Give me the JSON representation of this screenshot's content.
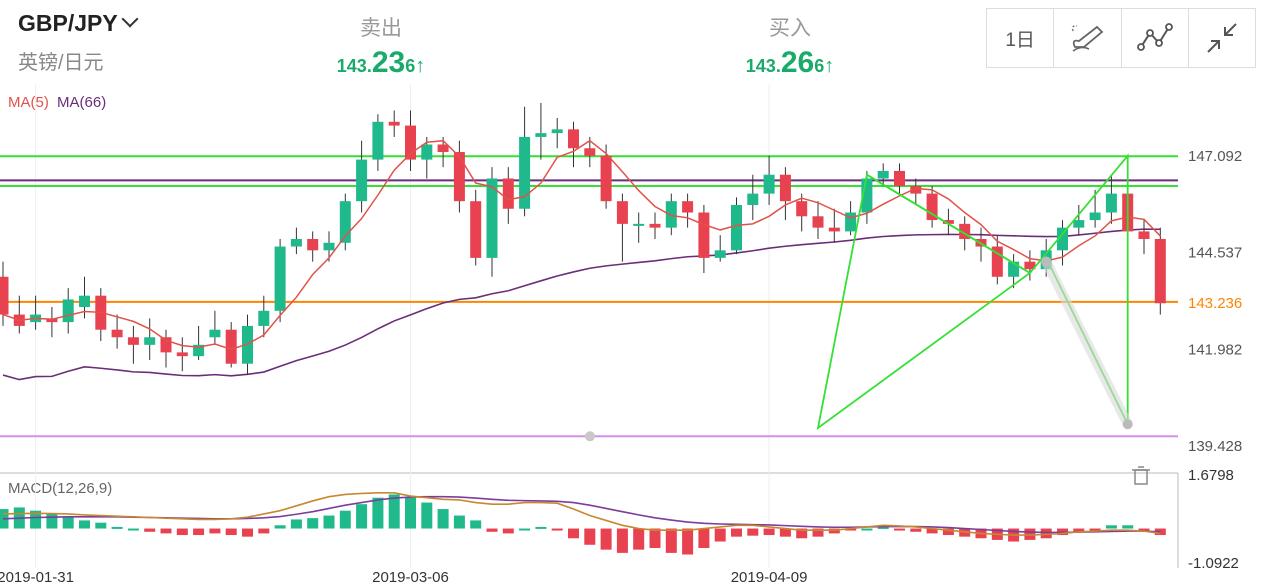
{
  "header": {
    "pair": "GBP/JPY",
    "pair_sub": "英镑/日元",
    "sell": {
      "label": "卖出",
      "small": "143.",
      "big": "23",
      "last": "6",
      "arrow": "↑"
    },
    "buy": {
      "label": "买入",
      "small": "143.",
      "big": "26",
      "last": "6",
      "arrow": "↑"
    },
    "timeframe_label": "1日",
    "tools": [
      "draw-pen-icon",
      "line-tool-icon",
      "collapse-icon"
    ]
  },
  "colors": {
    "up": "#1fb98c",
    "down": "#e8414f",
    "ma5": "#e0534a",
    "ma66": "#6b2d7a",
    "green_line": "#33e033",
    "orange_line": "#ff8400",
    "purple_line": "#d58df0",
    "dif": "#c88830",
    "dea": "#7b3d9e"
  },
  "chart_data": [
    {
      "type": "candlestick",
      "indicators": [
        {
          "name": "MA(5)",
          "color": "#e0534a"
        },
        {
          "name": "MA(66)",
          "color": "#6b2d7a"
        }
      ],
      "y_ticks": [
        "147.092",
        "144.537",
        "141.982",
        "139.428"
      ],
      "y_range": [
        139.0,
        149.0
      ],
      "current_price_label": "143.236",
      "current_price": 143.236,
      "horizontal_lines": [
        {
          "value": 147.09,
          "color": "#33e033"
        },
        {
          "value": 146.45,
          "color": "#6b2d7a"
        },
        {
          "value": 146.3,
          "color": "#33e033"
        },
        {
          "value": 143.236,
          "color": "#ff8400"
        },
        {
          "value": 139.68,
          "color": "#d58df0"
        }
      ],
      "x_tick_labels": [
        {
          "label": "2019-01-31",
          "index": 2
        },
        {
          "label": "2019-03-06",
          "index": 25
        },
        {
          "label": "2019-04-09",
          "index": 47
        }
      ],
      "candles": [
        [
          143.9,
          142.9,
          144.3,
          142.6
        ],
        [
          142.9,
          142.6,
          143.4,
          142.4
        ],
        [
          142.7,
          142.9,
          143.4,
          142.5
        ],
        [
          142.8,
          142.7,
          143.1,
          142.3
        ],
        [
          142.7,
          143.3,
          143.6,
          142.4
        ],
        [
          143.1,
          143.4,
          143.9,
          142.8
        ],
        [
          143.4,
          142.5,
          143.6,
          142.2
        ],
        [
          142.5,
          142.3,
          142.9,
          142.0
        ],
        [
          142.3,
          142.1,
          142.6,
          141.6
        ],
        [
          142.1,
          142.3,
          142.8,
          141.7
        ],
        [
          142.3,
          141.9,
          142.5,
          141.5
        ],
        [
          141.9,
          141.8,
          142.3,
          141.4
        ],
        [
          141.8,
          142.1,
          142.6,
          141.7
        ],
        [
          142.3,
          142.5,
          143.0,
          142.1
        ],
        [
          142.5,
          141.6,
          142.7,
          141.5
        ],
        [
          141.6,
          142.6,
          142.9,
          141.3
        ],
        [
          142.6,
          143.0,
          143.4,
          142.3
        ],
        [
          143.0,
          144.7,
          144.9,
          142.7
        ],
        [
          144.7,
          144.9,
          145.2,
          144.5
        ],
        [
          144.9,
          144.6,
          145.1,
          144.3
        ],
        [
          144.6,
          144.8,
          145.1,
          144.3
        ],
        [
          144.8,
          145.9,
          146.1,
          144.6
        ],
        [
          145.9,
          147.0,
          147.5,
          145.6
        ],
        [
          147.0,
          148.0,
          148.2,
          146.7
        ],
        [
          148.0,
          147.9,
          148.3,
          147.6
        ],
        [
          147.9,
          147.0,
          148.3,
          146.7
        ],
        [
          147.0,
          147.4,
          147.6,
          146.5
        ],
        [
          147.4,
          147.2,
          147.6,
          146.8
        ],
        [
          147.2,
          145.9,
          147.5,
          145.6
        ],
        [
          145.9,
          144.4,
          146.2,
          144.2
        ],
        [
          144.4,
          146.5,
          146.8,
          143.9
        ],
        [
          146.5,
          145.7,
          146.8,
          145.3
        ],
        [
          145.7,
          147.6,
          148.4,
          145.5
        ],
        [
          147.6,
          147.7,
          148.5,
          147.0
        ],
        [
          147.7,
          147.8,
          148.1,
          147.3
        ],
        [
          147.8,
          147.3,
          148.0,
          146.8
        ],
        [
          147.3,
          147.1,
          147.6,
          146.8
        ],
        [
          147.1,
          145.9,
          147.4,
          145.7
        ],
        [
          145.9,
          145.3,
          146.1,
          144.3
        ],
        [
          145.3,
          145.3,
          145.6,
          144.8
        ],
        [
          145.3,
          145.2,
          145.6,
          144.9
        ],
        [
          145.2,
          145.9,
          146.1,
          145.0
        ],
        [
          145.9,
          145.6,
          146.1,
          145.2
        ],
        [
          145.6,
          144.4,
          145.8,
          144.0
        ],
        [
          144.4,
          144.6,
          145.0,
          144.3
        ],
        [
          144.6,
          145.8,
          146.0,
          144.5
        ],
        [
          145.8,
          146.1,
          146.6,
          145.4
        ],
        [
          146.1,
          146.6,
          147.1,
          145.8
        ],
        [
          146.6,
          145.9,
          146.8,
          145.4
        ],
        [
          145.9,
          145.5,
          146.1,
          145.1
        ],
        [
          145.5,
          145.2,
          145.9,
          144.9
        ],
        [
          145.2,
          145.1,
          145.7,
          144.8
        ],
        [
          145.1,
          145.6,
          145.9,
          145.0
        ],
        [
          145.6,
          146.5,
          146.7,
          145.3
        ],
        [
          146.5,
          146.7,
          146.9,
          146.3
        ],
        [
          146.7,
          146.3,
          146.9,
          146.1
        ],
        [
          146.3,
          146.1,
          146.5,
          145.8
        ],
        [
          146.1,
          145.4,
          146.3,
          145.2
        ],
        [
          145.4,
          145.3,
          145.7,
          145.0
        ],
        [
          145.3,
          144.9,
          145.5,
          144.6
        ],
        [
          144.9,
          144.7,
          145.2,
          144.3
        ],
        [
          144.7,
          143.9,
          145.0,
          143.7
        ],
        [
          143.9,
          144.3,
          144.5,
          143.6
        ],
        [
          144.3,
          144.1,
          144.6,
          143.8
        ],
        [
          144.1,
          144.6,
          144.9,
          143.9
        ],
        [
          144.6,
          145.2,
          145.4,
          144.2
        ],
        [
          145.2,
          145.4,
          145.8,
          145.0
        ],
        [
          145.4,
          145.6,
          146.2,
          145.2
        ],
        [
          145.6,
          146.1,
          146.6,
          145.3
        ],
        [
          146.1,
          145.1,
          146.3,
          144.9
        ],
        [
          145.1,
          144.9,
          145.4,
          144.5
        ],
        [
          144.9,
          143.2,
          145.2,
          142.9
        ]
      ]
    },
    {
      "type": "bar",
      "name": "MACD(12,26,9)",
      "y_ticks": [
        "1.6798",
        "-1.0922"
      ],
      "y_range": [
        -1.0922,
        1.6798
      ],
      "histogram": [
        0.6,
        0.65,
        0.55,
        0.45,
        0.35,
        0.25,
        0.18,
        0.05,
        0.0,
        -0.1,
        -0.15,
        -0.2,
        -0.2,
        -0.15,
        -0.2,
        -0.25,
        -0.15,
        0.1,
        0.28,
        0.32,
        0.4,
        0.55,
        0.75,
        0.95,
        1.05,
        0.95,
        0.8,
        0.6,
        0.4,
        0.25,
        -0.1,
        -0.15,
        0.0,
        0.05,
        -0.05,
        -0.3,
        -0.5,
        -0.65,
        -0.75,
        -0.65,
        -0.6,
        -0.75,
        -0.8,
        -0.6,
        -0.4,
        -0.25,
        -0.22,
        -0.2,
        -0.25,
        -0.3,
        -0.25,
        -0.15,
        -0.05,
        0.0,
        0.05,
        -0.05,
        -0.1,
        -0.15,
        -0.2,
        -0.25,
        -0.3,
        -0.35,
        -0.4,
        -0.35,
        -0.3,
        -0.2,
        -0.1,
        -0.1,
        0.1,
        0.1,
        -0.05,
        -0.2
      ],
      "dif": [
        0.45,
        0.46,
        0.47,
        0.46,
        0.45,
        0.42,
        0.4,
        0.38,
        0.36,
        0.34,
        0.32,
        0.3,
        0.28,
        0.28,
        0.3,
        0.35,
        0.45,
        0.55,
        0.7,
        0.85,
        0.98,
        1.05,
        1.08,
        1.1,
        1.1,
        1.0,
        0.95,
        0.9,
        0.88,
        0.8,
        0.75,
        0.75,
        0.8,
        0.8,
        0.78,
        0.6,
        0.4,
        0.25,
        0.1,
        0.0,
        -0.05,
        -0.05,
        -0.05,
        0.0,
        0.05,
        0.1,
        0.1,
        0.05,
        0.0,
        -0.05,
        -0.05,
        -0.05,
        0.0,
        0.05,
        0.1,
        0.08,
        0.05,
        0.0,
        -0.05,
        -0.1,
        -0.15,
        -0.18,
        -0.2,
        -0.2,
        -0.18,
        -0.15,
        -0.1,
        -0.08,
        -0.05,
        -0.05,
        -0.08,
        -0.15
      ],
      "dea": [
        0.3,
        0.32,
        0.34,
        0.35,
        0.36,
        0.36,
        0.36,
        0.36,
        0.35,
        0.34,
        0.33,
        0.32,
        0.31,
        0.3,
        0.3,
        0.31,
        0.33,
        0.37,
        0.44,
        0.52,
        0.62,
        0.72,
        0.8,
        0.88,
        0.94,
        0.97,
        0.98,
        0.98,
        0.97,
        0.94,
        0.9,
        0.87,
        0.86,
        0.85,
        0.84,
        0.8,
        0.72,
        0.62,
        0.52,
        0.42,
        0.33,
        0.26,
        0.2,
        0.16,
        0.14,
        0.13,
        0.12,
        0.11,
        0.09,
        0.07,
        0.05,
        0.04,
        0.04,
        0.05,
        0.06,
        0.06,
        0.06,
        0.05,
        0.03,
        0.0,
        -0.03,
        -0.06,
        -0.09,
        -0.11,
        -0.12,
        -0.12,
        -0.11,
        -0.1,
        -0.09,
        -0.08,
        -0.08,
        -0.1
      ]
    }
  ]
}
